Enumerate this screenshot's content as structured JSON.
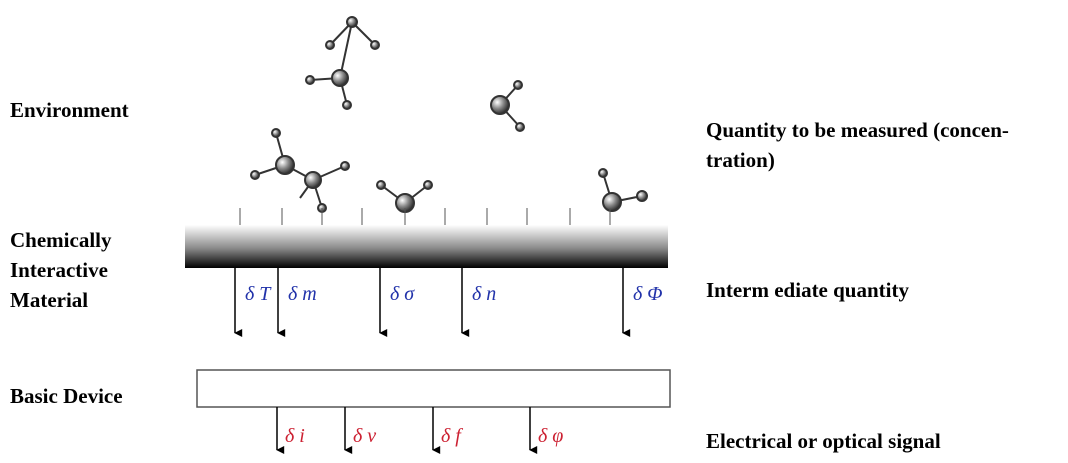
{
  "left_labels": [
    {
      "lines": [
        "Environment"
      ]
    },
    {
      "lines": [
        "Chemically",
        "Interactive",
        "Material"
      ]
    },
    {
      "lines": [
        "Basic Device"
      ]
    }
  ],
  "right_labels": [
    {
      "lines": [
        "Quantity to be measured (concen-",
        "tration)"
      ]
    },
    {
      "lines": [
        "Interm ediate quantity"
      ]
    },
    {
      "lines": [
        "Electrical or optical signal"
      ]
    }
  ],
  "intermediate_quantities": [
    "δ T",
    "δ m",
    "δ σ",
    "δ n",
    "δ Φ"
  ],
  "signals": [
    "δ i",
    "δ v",
    "δ f",
    "δ φ"
  ]
}
